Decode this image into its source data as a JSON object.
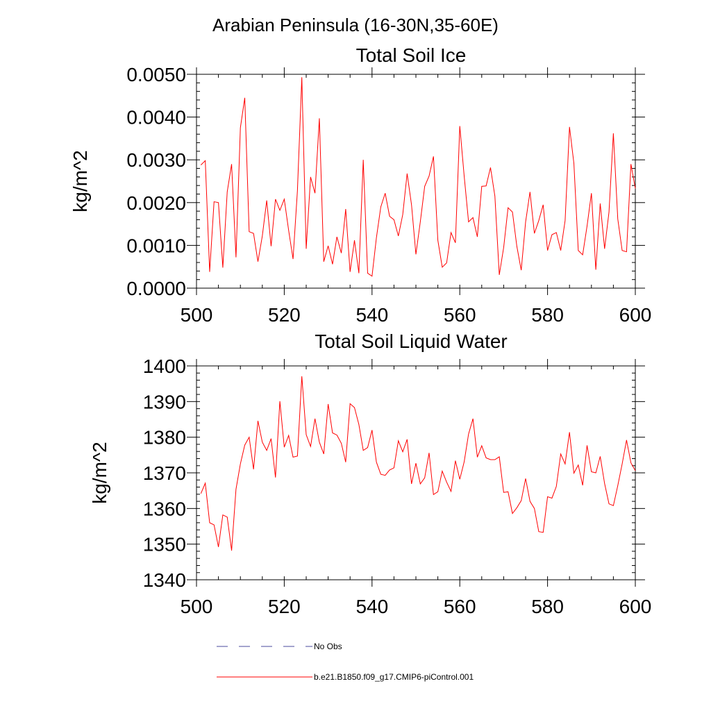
{
  "figure": {
    "main_title": "Arabian Peninsula (16-30N,35-60E)"
  },
  "colors": {
    "series": "#ff0000",
    "obs": "#4a4a9c",
    "axis": "#000000"
  },
  "chart_data": [
    {
      "type": "line",
      "title": "Total Soil Ice",
      "xlabel": "",
      "ylabel": "kg/m^2",
      "xlim": [
        500,
        600
      ],
      "ylim": [
        0,
        0.005
      ],
      "x_ticks": [
        500,
        520,
        540,
        560,
        580,
        600
      ],
      "y_ticks": [
        "0.0000",
        "0.0010",
        "0.0020",
        "0.0030",
        "0.0040",
        "0.0050"
      ],
      "y_tick_values": [
        0,
        0.001,
        0.002,
        0.003,
        0.004,
        0.005
      ],
      "x_minor_step": 5,
      "y_minor_step": 0.0002,
      "series": [
        {
          "name": "b.e21.B1850.f09_g17.CMIP6-piControl.001",
          "x_start": 501,
          "values": [
            0.00288,
            0.00298,
            0.00038,
            0.00202,
            0.002,
            0.00048,
            0.00225,
            0.0029,
            0.00072,
            0.00375,
            0.00445,
            0.00132,
            0.00128,
            0.00062,
            0.00122,
            0.00205,
            0.00098,
            0.00208,
            0.00182,
            0.00208,
            0.00135,
            0.00068,
            0.00228,
            0.00493,
            0.00092,
            0.0026,
            0.00222,
            0.00397,
            0.00062,
            0.00099,
            0.00056,
            0.0012,
            0.00082,
            0.00185,
            0.00038,
            0.00112,
            0.00035,
            0.003,
            0.00035,
            0.00028,
            0.00118,
            0.0019,
            0.00222,
            0.00168,
            0.0016,
            0.00122,
            0.00172,
            0.00268,
            0.00195,
            0.00079,
            0.00155,
            0.00238,
            0.00262,
            0.00308,
            0.00112,
            0.00049,
            0.00059,
            0.0013,
            0.00106,
            0.00379,
            0.00262,
            0.00155,
            0.00165,
            0.0012,
            0.00238,
            0.00239,
            0.00282,
            0.00215,
            0.00031,
            0.00095,
            0.00188,
            0.00178,
            0.00098,
            0.00042,
            0.00155,
            0.00225,
            0.00128,
            0.00158,
            0.00195,
            0.00088,
            0.00125,
            0.0013,
            0.00088,
            0.00158,
            0.00377,
            0.00292,
            0.00088,
            0.00078,
            0.00145,
            0.00222,
            0.00043,
            0.00198,
            0.00092,
            0.00178,
            0.00362,
            0.00162,
            0.00088,
            0.00085,
            0.0029,
            0.00233
          ]
        }
      ]
    },
    {
      "type": "line",
      "title": "Total Soil Liquid Water",
      "xlabel": "",
      "ylabel": "kg/m^2",
      "xlim": [
        500,
        600
      ],
      "ylim": [
        1340,
        1400
      ],
      "x_ticks": [
        500,
        520,
        540,
        560,
        580,
        600
      ],
      "y_ticks": [
        "1340",
        "1350",
        "1360",
        "1370",
        "1380",
        "1390",
        "1400"
      ],
      "y_tick_values": [
        1340,
        1350,
        1360,
        1370,
        1380,
        1390,
        1400
      ],
      "x_minor_step": 5,
      "y_minor_step": 2,
      "series": [
        {
          "name": "b.e21.B1850.f09_g17.CMIP6-piControl.001",
          "x_start": 501,
          "values": [
            1364.2,
            1367.1,
            1356.0,
            1355.4,
            1349.2,
            1358.2,
            1357.6,
            1348.2,
            1365.4,
            1372.5,
            1377.8,
            1380.0,
            1371.0,
            1384.6,
            1378.6,
            1376.3,
            1379.6,
            1368.7,
            1390.1,
            1377.2,
            1380.5,
            1374.4,
            1374.7,
            1397.1,
            1380.7,
            1377.4,
            1385.2,
            1378.6,
            1375.3,
            1389.3,
            1381.2,
            1380.6,
            1378.3,
            1373.0,
            1389.4,
            1388.3,
            1383.6,
            1376.3,
            1377.1,
            1382.0,
            1373.0,
            1369.6,
            1369.3,
            1370.8,
            1371.4,
            1379.0,
            1375.9,
            1379.4,
            1366.9,
            1372.7,
            1366.9,
            1368.6,
            1375.6,
            1363.9,
            1364.7,
            1370.5,
            1367.4,
            1364.8,
            1373.4,
            1368.2,
            1373.1,
            1380.9,
            1385.2,
            1374.4,
            1377.6,
            1374.2,
            1373.7,
            1373.7,
            1374.5,
            1364.5,
            1364.7,
            1358.6,
            1360.2,
            1362.2,
            1368.4,
            1362.0,
            1360.0,
            1353.5,
            1353.3,
            1363.3,
            1362.9,
            1366.2,
            1375.3,
            1372.5,
            1381.4,
            1369.9,
            1372.2,
            1366.5,
            1377.7,
            1370.3,
            1370.0,
            1374.6,
            1367.0,
            1361.3,
            1360.8,
            1366.4,
            1372.5,
            1379.2,
            1372.8,
            1370.6
          ]
        }
      ]
    }
  ],
  "legend": {
    "items": [
      {
        "label": "No Obs",
        "style": "dashed"
      },
      {
        "label": "b.e21.B1850.f09_g17.CMIP6-piControl.001",
        "style": "solid"
      }
    ]
  }
}
